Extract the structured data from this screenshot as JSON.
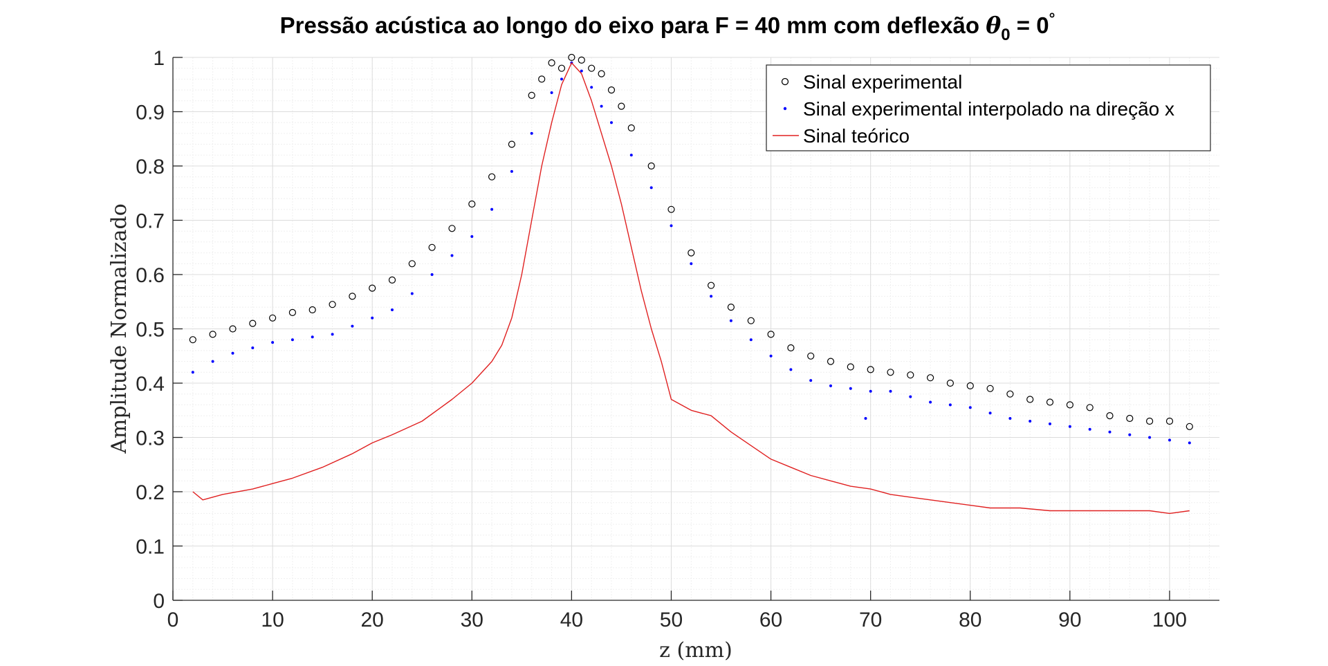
{
  "title": {
    "prefix": "Pressão acústica ao longo do eixo para F = 40 mm com deflexão ",
    "symbol": "θ",
    "subscript": "0",
    "equals": " = 0",
    "superscript": "°"
  },
  "colors": {
    "experimental": "#000000",
    "interpolated": "#0000ff",
    "theoretical": "#e02020",
    "axis": "#262626",
    "grid_major": "#dcdcdc",
    "grid_minor": "#efefef"
  },
  "chart_data": {
    "type": "line",
    "title": "Pressão acústica ao longo do eixo para F = 40 mm com deflexão θ0 = 0°",
    "xlabel": "z (mm)",
    "ylabel": "Amplitude Normalizado",
    "xlim": [
      0,
      105
    ],
    "ylim": [
      0,
      1
    ],
    "xticks": [
      0,
      10,
      20,
      30,
      40,
      50,
      60,
      70,
      80,
      90,
      100
    ],
    "yticks": [
      0,
      0.1,
      0.2,
      0.3,
      0.4,
      0.5,
      0.6,
      0.7,
      0.8,
      0.9,
      1
    ],
    "ytick_labels": [
      "0",
      "0.1",
      "0.2",
      "0.3",
      "0.4",
      "0.5",
      "0.6",
      "0.7",
      "0.8",
      "0.9",
      "1"
    ],
    "grid": true,
    "minor_grid": true,
    "legend_position": "top-right",
    "series": [
      {
        "name": "Sinal experimental",
        "style": "circle-markers",
        "x": [
          2,
          4,
          6,
          8,
          10,
          12,
          14,
          16,
          18,
          20,
          22,
          24,
          26,
          28,
          30,
          32,
          34,
          36,
          37,
          38,
          39,
          40,
          41,
          42,
          43,
          44,
          45,
          46,
          48,
          50,
          52,
          54,
          56,
          58,
          60,
          62,
          64,
          66,
          68,
          70,
          72,
          74,
          76,
          78,
          80,
          82,
          84,
          86,
          88,
          90,
          92,
          94,
          96,
          98,
          100,
          102
        ],
        "y": [
          0.48,
          0.49,
          0.5,
          0.51,
          0.52,
          0.53,
          0.535,
          0.545,
          0.56,
          0.575,
          0.59,
          0.62,
          0.65,
          0.685,
          0.73,
          0.78,
          0.84,
          0.93,
          0.96,
          0.99,
          0.98,
          1.0,
          0.995,
          0.98,
          0.97,
          0.94,
          0.91,
          0.87,
          0.8,
          0.72,
          0.64,
          0.58,
          0.54,
          0.515,
          0.49,
          0.465,
          0.45,
          0.44,
          0.43,
          0.425,
          0.42,
          0.415,
          0.41,
          0.4,
          0.395,
          0.39,
          0.38,
          0.37,
          0.365,
          0.36,
          0.355,
          0.34,
          0.335,
          0.33,
          0.33,
          0.32
        ]
      },
      {
        "name": "Sinal experimental interpolado na direção x",
        "style": "dot-markers",
        "x": [
          2,
          4,
          6,
          8,
          10,
          12,
          14,
          16,
          18,
          20,
          22,
          24,
          26,
          28,
          30,
          32,
          34,
          36,
          38,
          39,
          40,
          41,
          42,
          43,
          44,
          46,
          48,
          50,
          52,
          54,
          56,
          58,
          60,
          62,
          64,
          66,
          68,
          69.5,
          70,
          72,
          74,
          76,
          78,
          80,
          82,
          84,
          86,
          88,
          90,
          92,
          94,
          96,
          98,
          100,
          102
        ],
        "y": [
          0.42,
          0.44,
          0.455,
          0.465,
          0.475,
          0.48,
          0.485,
          0.49,
          0.505,
          0.52,
          0.535,
          0.565,
          0.6,
          0.635,
          0.67,
          0.72,
          0.79,
          0.86,
          0.935,
          0.96,
          0.99,
          0.975,
          0.945,
          0.91,
          0.88,
          0.82,
          0.76,
          0.69,
          0.62,
          0.56,
          0.515,
          0.48,
          0.45,
          0.425,
          0.405,
          0.395,
          0.39,
          0.335,
          0.385,
          0.385,
          0.375,
          0.365,
          0.36,
          0.355,
          0.345,
          0.335,
          0.33,
          0.325,
          0.32,
          0.315,
          0.31,
          0.305,
          0.3,
          0.295,
          0.29
        ]
      },
      {
        "name": "Sinal teórico",
        "style": "line",
        "x": [
          2,
          3,
          5,
          8,
          10,
          12,
          15,
          18,
          20,
          22,
          25,
          28,
          30,
          32,
          33,
          34,
          35,
          36,
          37,
          38,
          39,
          40,
          41,
          42,
          43,
          44,
          45,
          46,
          47,
          48,
          49,
          50,
          52,
          54,
          56,
          58,
          60,
          62,
          64,
          66,
          68,
          70,
          72,
          74,
          76,
          78,
          80,
          82,
          85,
          88,
          90,
          92,
          95,
          98,
          100,
          102
        ],
        "y": [
          0.2,
          0.185,
          0.195,
          0.205,
          0.215,
          0.225,
          0.245,
          0.27,
          0.29,
          0.305,
          0.33,
          0.37,
          0.4,
          0.44,
          0.47,
          0.52,
          0.6,
          0.7,
          0.8,
          0.88,
          0.95,
          0.99,
          0.97,
          0.92,
          0.86,
          0.8,
          0.73,
          0.65,
          0.57,
          0.5,
          0.44,
          0.37,
          0.35,
          0.34,
          0.31,
          0.285,
          0.26,
          0.245,
          0.23,
          0.22,
          0.21,
          0.205,
          0.195,
          0.19,
          0.185,
          0.18,
          0.175,
          0.17,
          0.17,
          0.165,
          0.165,
          0.165,
          0.165,
          0.165,
          0.16,
          0.165
        ]
      }
    ]
  }
}
